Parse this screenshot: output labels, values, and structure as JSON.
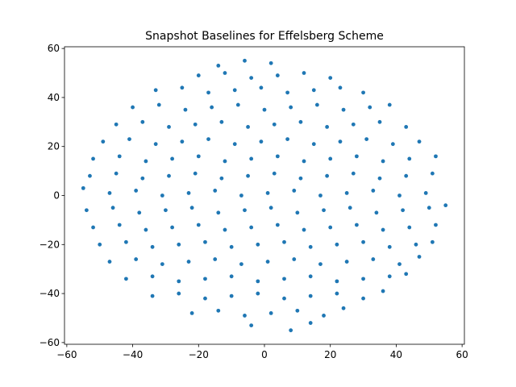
{
  "chart_data": {
    "type": "scatter",
    "title": "Snapshot Baselines for Effelsberg Scheme",
    "series": [
      {
        "color": "#1f77b4",
        "x": [
          8,
          -4,
          14,
          -22,
          -14,
          -6,
          2,
          10,
          18,
          24,
          -34,
          -26,
          -18,
          -10,
          -2,
          6,
          14,
          22,
          30,
          36,
          -42,
          -34,
          -26,
          -18,
          -10,
          -2,
          6,
          14,
          22,
          30,
          38,
          43,
          -47,
          -39,
          -31,
          -23,
          -15,
          -7,
          1,
          9,
          17,
          25,
          33,
          41,
          47,
          -50,
          -42,
          -34,
          -26,
          -18,
          -10,
          -2,
          6,
          14,
          22,
          30,
          38,
          46,
          51,
          -52,
          -44,
          -36,
          -28,
          -20,
          -12,
          -4,
          4,
          12,
          20,
          28,
          36,
          44,
          52,
          -54,
          -46,
          -38,
          -30,
          -22,
          -14,
          -6,
          2,
          10,
          18,
          26,
          34,
          42,
          50,
          -55,
          -47,
          -39,
          -31,
          -23,
          -15,
          -7,
          1,
          9,
          17,
          25,
          33,
          41,
          49,
          55,
          -53,
          -45,
          -37,
          -29,
          -21,
          -13,
          -5,
          3,
          11,
          19,
          27,
          35,
          43,
          51,
          -52,
          -44,
          -36,
          -28,
          -20,
          -12,
          -4,
          4,
          12,
          20,
          28,
          36,
          44,
          52,
          -49,
          -41,
          -33,
          -25,
          -17,
          -9,
          -1,
          7,
          15,
          23,
          31,
          39,
          47,
          -45,
          -37,
          -29,
          -21,
          -13,
          -5,
          3,
          11,
          19,
          27,
          35,
          43,
          -40,
          -32,
          -24,
          -16,
          -8,
          0,
          8,
          16,
          24,
          32,
          38,
          -33,
          -25,
          -17,
          -9,
          -1,
          7,
          15,
          23,
          30,
          -20,
          -12,
          -4,
          4,
          12,
          20,
          -14,
          2,
          -6
        ],
        "y": [
          -55,
          -53,
          -52,
          -48,
          -47,
          -49,
          -48,
          -47,
          -49,
          -46,
          -41,
          -40,
          -42,
          -41,
          -40,
          -42,
          -41,
          -40,
          -42,
          -39,
          -34,
          -33,
          -35,
          -34,
          -33,
          -35,
          -34,
          -33,
          -35,
          -34,
          -33,
          -32,
          -27,
          -26,
          -28,
          -27,
          -26,
          -28,
          -27,
          -26,
          -28,
          -27,
          -26,
          -28,
          -25,
          -20,
          -19,
          -21,
          -20,
          -19,
          -21,
          -20,
          -19,
          -21,
          -20,
          -19,
          -21,
          -20,
          -19,
          -13,
          -12,
          -14,
          -13,
          -12,
          -14,
          -13,
          -12,
          -14,
          -13,
          -12,
          -14,
          -13,
          -12,
          -6,
          -5,
          -7,
          -6,
          -5,
          -7,
          -6,
          -5,
          -7,
          -6,
          -5,
          -7,
          -6,
          -5,
          3,
          1,
          2,
          0,
          1,
          2,
          0,
          1,
          2,
          0,
          1,
          2,
          0,
          1,
          -4,
          8,
          9,
          7,
          8,
          9,
          7,
          8,
          9,
          7,
          8,
          9,
          7,
          8,
          9,
          15,
          16,
          14,
          15,
          16,
          14,
          15,
          16,
          14,
          15,
          16,
          14,
          15,
          16,
          22,
          23,
          21,
          22,
          23,
          21,
          22,
          23,
          21,
          22,
          23,
          21,
          22,
          29,
          30,
          28,
          29,
          30,
          28,
          29,
          30,
          28,
          29,
          30,
          28,
          36,
          37,
          35,
          36,
          37,
          35,
          36,
          37,
          35,
          36,
          37,
          43,
          44,
          42,
          43,
          44,
          42,
          43,
          44,
          42,
          49,
          50,
          48,
          49,
          50,
          48,
          53,
          54,
          55
        ]
      }
    ],
    "xlim": [
      -60.7,
      60.7
    ],
    "ylim": [
      -60.7,
      60.7
    ],
    "xticks": [
      {
        "value": -60,
        "label": "−60"
      },
      {
        "value": -40,
        "label": "−40"
      },
      {
        "value": -20,
        "label": "−20"
      },
      0,
      20,
      40,
      60
    ],
    "yticks": [
      {
        "value": -60,
        "label": "−60"
      },
      {
        "value": -40,
        "label": "−40"
      },
      {
        "value": -20,
        "label": "−20"
      },
      0,
      20,
      40,
      60
    ],
    "grid": false
  }
}
